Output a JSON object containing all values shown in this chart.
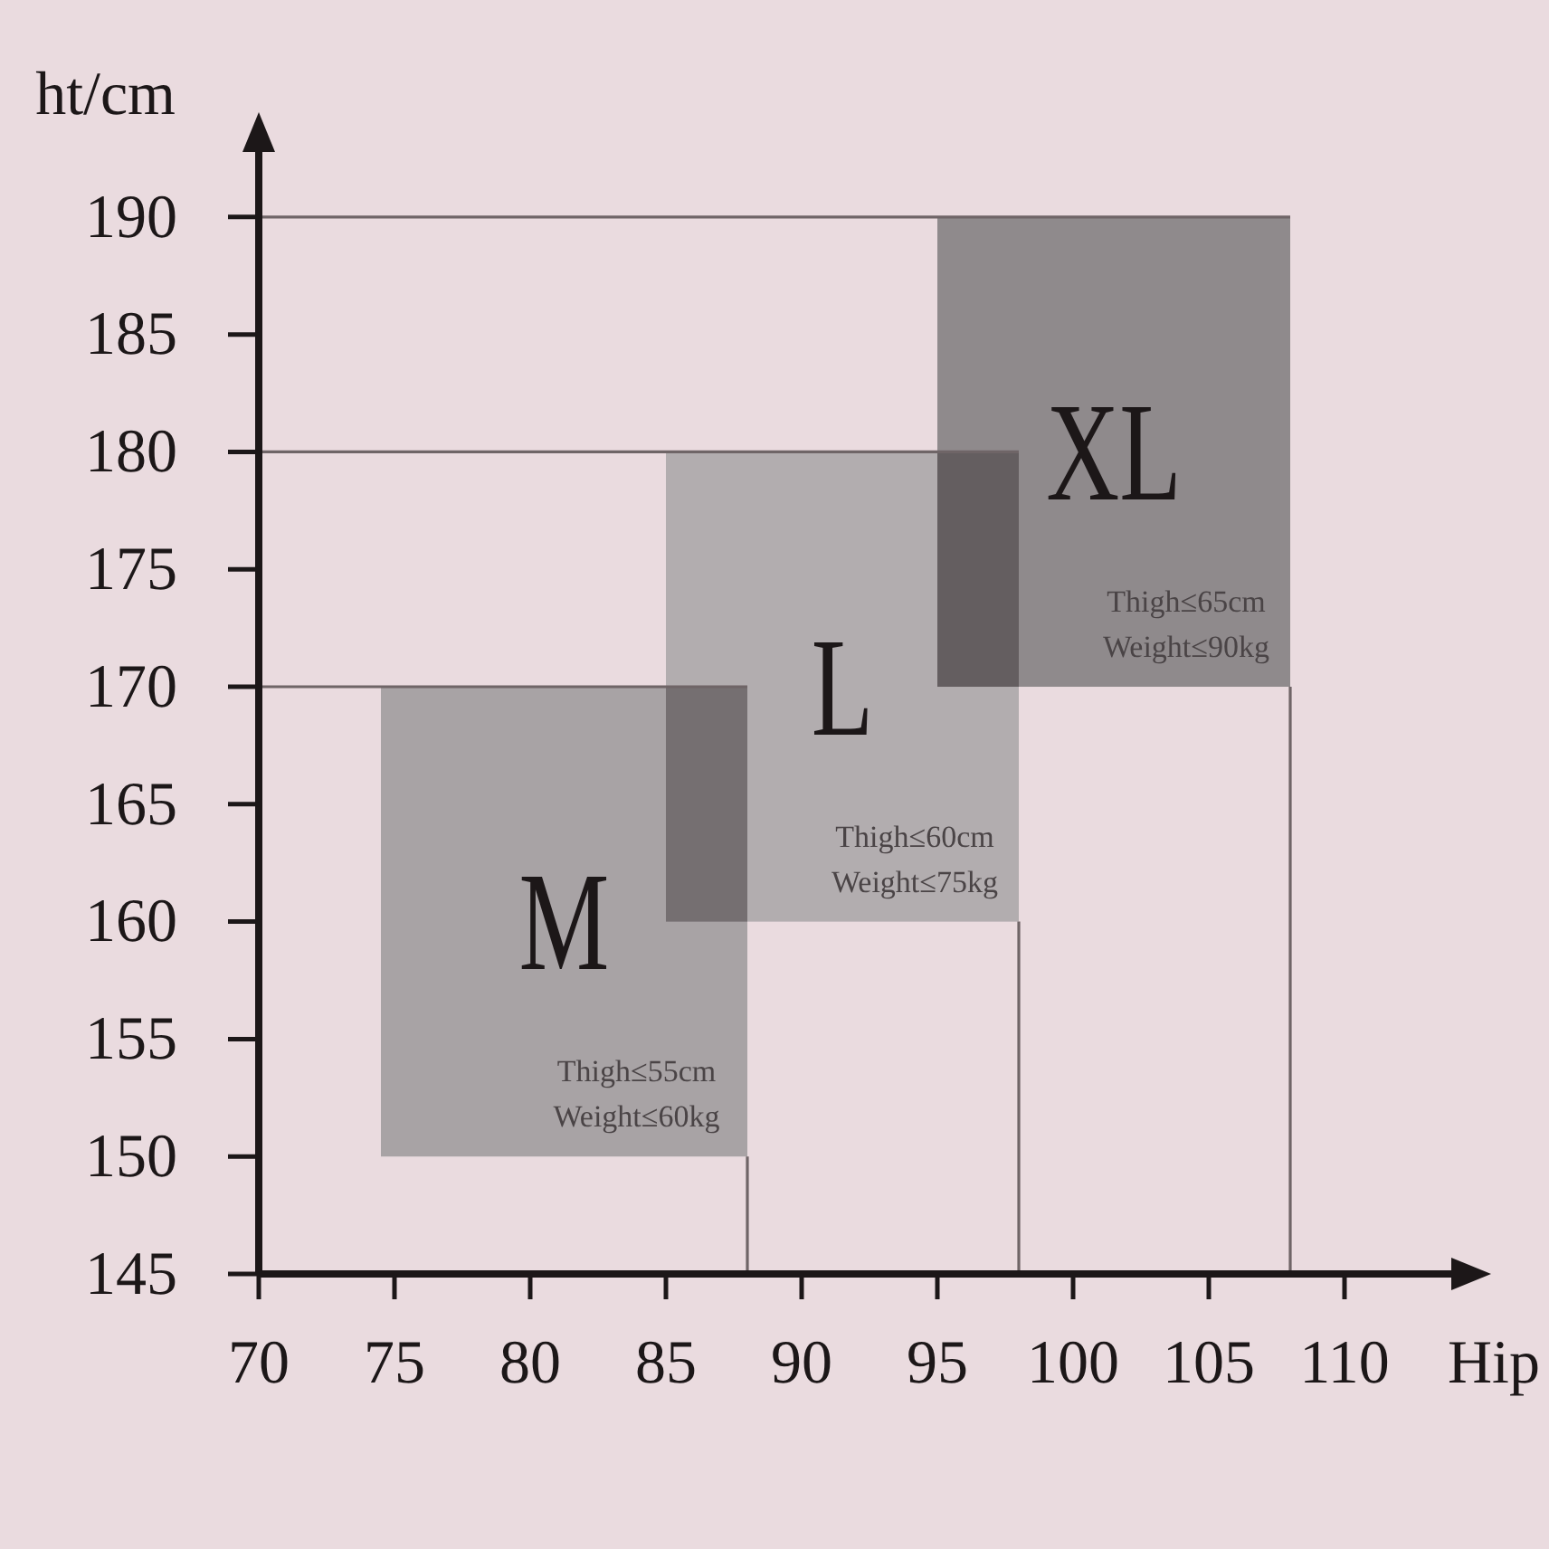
{
  "chart_data": {
    "type": "bar",
    "xlabel": "Hip",
    "ylabel": "ht/cm",
    "series": [
      {
        "name": "M",
        "color": "#a8a3a5",
        "x": [
          81.25
        ],
        "base": [
          150
        ],
        "values": [
          20
        ],
        "xerrors": [
          [
            74.5,
            88
          ]
        ]
      },
      {
        "name": "L",
        "color": "#b2adaf",
        "x": [
          91.5
        ],
        "base": [
          160
        ],
        "values": [
          20
        ],
        "xerrors": [
          [
            85,
            98
          ]
        ]
      },
      {
        "name": "XL",
        "color": "#8f8a8c",
        "x": [
          101.5
        ],
        "base": [
          170
        ],
        "values": [
          20
        ],
        "xerrors": [
          [
            95,
            108
          ]
        ]
      },
      {
        "type": "line",
        "color": "#6f6567",
        "x": [
          70,
          74.5
        ],
        "values": [
          170,
          170
        ]
      },
      {
        "type": "line",
        "color": "#6f6567",
        "x": [
          70,
          85
        ],
        "values": [
          180,
          180
        ]
      },
      {
        "type": "line",
        "color": "#6f6567",
        "x": [
          70,
          95
        ],
        "values": [
          190,
          190
        ]
      },
      {
        "type": "line",
        "color": "#6f6567",
        "x": [
          88,
          88
        ],
        "values": [
          150,
          145
        ]
      },
      {
        "type": "line",
        "color": "#6f6567",
        "x": [
          98,
          98
        ],
        "values": [
          160,
          145
        ]
      },
      {
        "type": "line",
        "color": "#6f6567",
        "x": [
          108,
          108
        ],
        "values": [
          170,
          145
        ]
      }
    ],
    "xlim": [
      70,
      115
    ],
    "xticks": [
      70,
      75,
      80,
      85,
      90,
      95,
      100,
      105,
      110
    ],
    "ylim": [
      145,
      194
    ],
    "yticks": [
      145,
      150,
      155,
      160,
      165,
      170,
      175,
      180,
      185,
      190
    ],
    "annotations": [
      {
        "text": "Thigh≤55cm",
        "x": 81.25,
        "y": 150
      },
      {
        "text": "Weight≤60kg",
        "x": 81.25,
        "y": 150
      },
      {
        "text": "Thigh≤60cm",
        "x": 91.5,
        "y": 160
      },
      {
        "text": "Weight≤75kg",
        "x": 91.5,
        "y": 160
      },
      {
        "text": "Thigh≤65cm",
        "x": 101.5,
        "y": 170
      },
      {
        "text": "Weight≤90kg",
        "x": 101.5,
        "y": 170
      }
    ]
  }
}
